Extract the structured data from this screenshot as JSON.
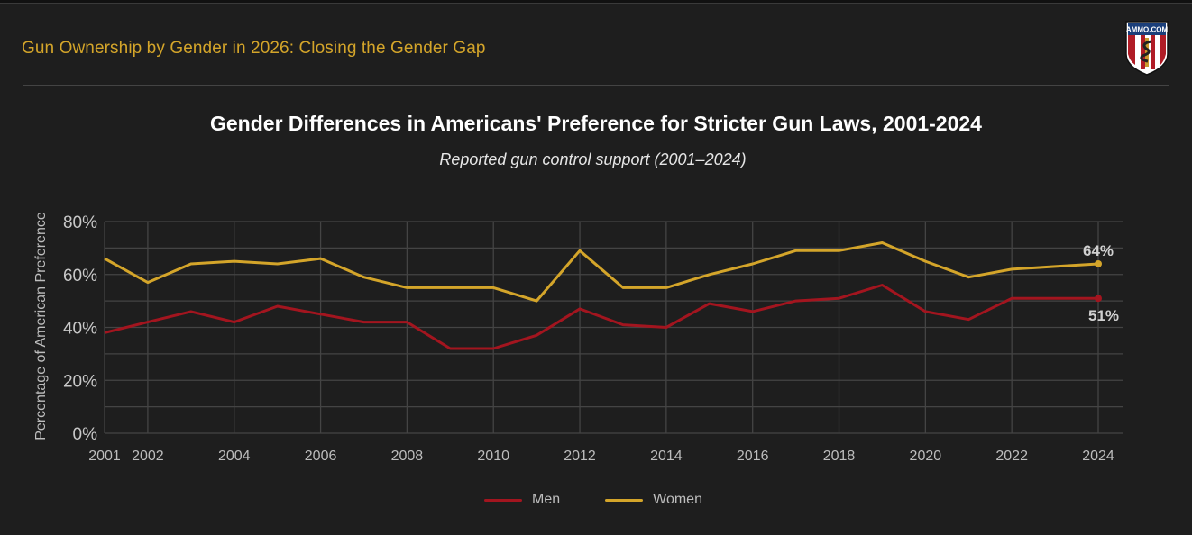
{
  "header": {
    "page_title": "Gun Ownership by Gender in 2026: Closing the Gender Gap",
    "logo_text": "AMMO.COM",
    "logo_icon": "shield-snake-logo"
  },
  "colors": {
    "background": "#1e1e1e",
    "accent": "#d4a52a",
    "men": "#a3151f",
    "women": "#d4a52a",
    "grid": "#444444",
    "text": "#bdbdbd"
  },
  "chart_data": {
    "type": "line",
    "title": "Gender Differences in Americans' Preference for Stricter Gun Laws, 2001-2024",
    "subtitle": "Reported gun control support (2001–2024)",
    "xlabel": "",
    "ylabel": "Percentage of American Preference",
    "x": [
      2001,
      2002,
      2003,
      2004,
      2005,
      2006,
      2007,
      2008,
      2009,
      2010,
      2011,
      2012,
      2013,
      2014,
      2015,
      2016,
      2017,
      2018,
      2019,
      2020,
      2021,
      2022,
      2023,
      2024
    ],
    "xlim": [
      2001,
      2024
    ],
    "x_ticks": [
      "2001",
      "2002",
      "2004",
      "2006",
      "2008",
      "2010",
      "2012",
      "2014",
      "2016",
      "2018",
      "2020",
      "2022",
      "2024"
    ],
    "ylim": [
      0,
      80
    ],
    "y_ticks": [
      "0%",
      "20%",
      "40%",
      "60%",
      "80%"
    ],
    "grid": true,
    "legend_position": "bottom-center",
    "series": [
      {
        "name": "Men",
        "color": "#a3151f",
        "values": [
          38,
          42,
          46,
          42,
          48,
          45,
          42,
          42,
          32,
          32,
          37,
          47,
          41,
          40,
          49,
          46,
          50,
          51,
          56,
          46,
          43,
          51,
          51,
          51
        ],
        "end_label": "51%"
      },
      {
        "name": "Women",
        "color": "#d4a52a",
        "values": [
          66,
          57,
          64,
          65,
          64,
          66,
          59,
          55,
          55,
          55,
          50,
          69,
          55,
          55,
          60,
          64,
          69,
          69,
          72,
          65,
          59,
          62,
          63,
          64
        ],
        "end_label": "64%"
      }
    ]
  }
}
